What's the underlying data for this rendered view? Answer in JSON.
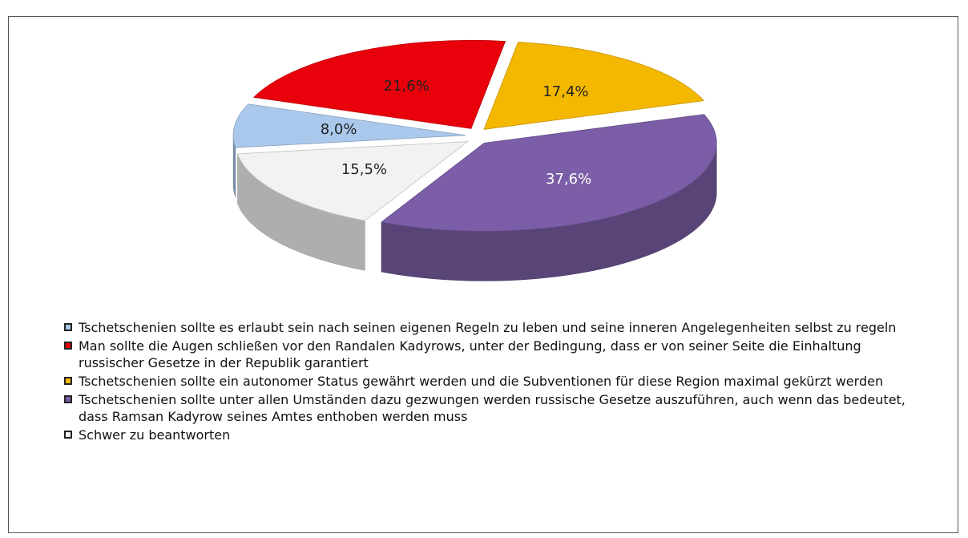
{
  "chart_data": {
    "type": "pie",
    "categories": [
      "Tschetschenien sollte es erlaubt sein nach seinen eigenen Regeln zu leben und seine inneren Angelegenheiten selbst zu regeln",
      "Man sollte die Augen schließen vor den Randalen Kadyrows, unter der Bedingung, dass er von seiner Seite die Einhaltung russischer Gesetze in der Republik garantiert",
      "Tschetschenien sollte ein autonomer Status gewährt werden und die Subventionen für diese Region maximal gekürzt werden",
      "Tschetschenien sollte unter allen Umständen dazu gezwungen werden russische Gesetze auszuführen, auch wenn das bedeutet, dass Ramsan Kadyrow seines Amtes enthoben werden muss",
      "Schwer zu beantworten"
    ],
    "values": [
      8.0,
      21.6,
      17.4,
      37.6,
      15.5
    ],
    "value_labels": [
      "8,0%",
      "21,6%",
      "17,4%",
      "37,6%",
      "15,5%"
    ],
    "colors": [
      "#a9c8ec",
      "#e8000b",
      "#f5b800",
      "#7b5ea7",
      "#f2f2f2"
    ]
  }
}
